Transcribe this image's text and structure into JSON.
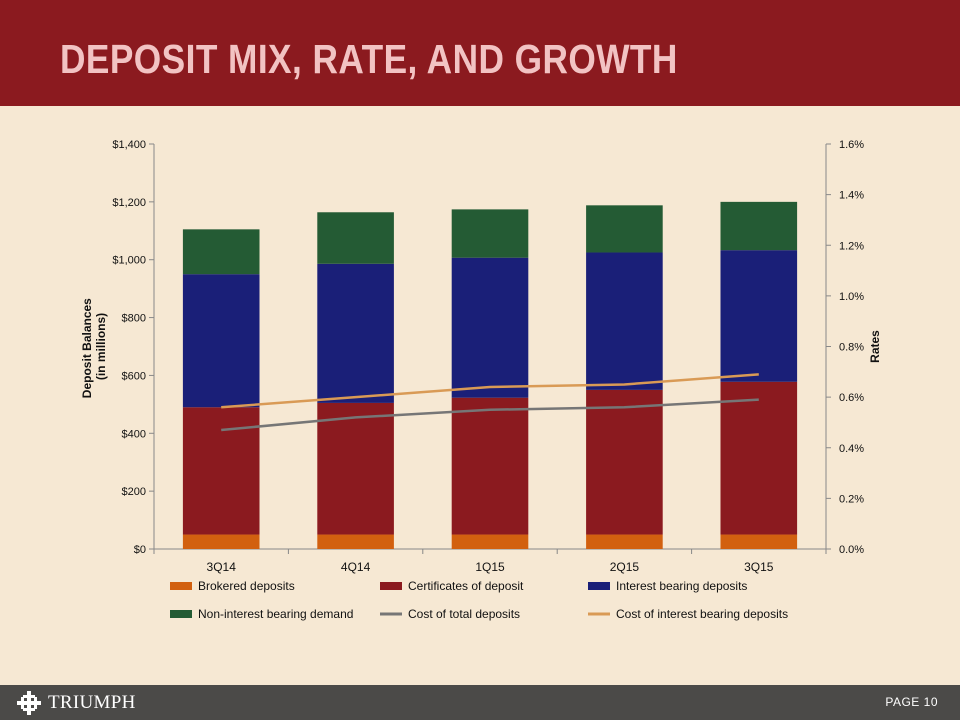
{
  "slide": {
    "title": "DEPOSIT MIX, RATE, AND GROWTH"
  },
  "footer": {
    "brand": "TRIUMPH",
    "page_label": "PAGE 10"
  },
  "colors": {
    "header": "#8b1a1f",
    "background": "#f6e8d3",
    "footer": "#4b4a48",
    "brokered": "#d2600f",
    "certificates": "#8b1a1f",
    "interest_bearing": "#1a1f78",
    "non_interest": "#245b34",
    "cost_total": "#767676",
    "cost_interest": "#d99a55"
  },
  "chart_data": {
    "type": "bar",
    "stacked": true,
    "categories": [
      "3Q14",
      "4Q14",
      "1Q15",
      "2Q15",
      "3Q15"
    ],
    "series": [
      {
        "name": "Brokered deposits",
        "type": "bar",
        "axis": "left",
        "color": "#d2600f",
        "values": [
          50,
          50,
          50,
          50,
          50
        ]
      },
      {
        "name": "Certificates of deposit",
        "type": "bar",
        "axis": "left",
        "color": "#8b1a1f",
        "values": [
          440,
          455,
          473,
          500,
          528
        ]
      },
      {
        "name": "Interest bearing deposits",
        "type": "bar",
        "axis": "left",
        "color": "#1a1f78",
        "values": [
          460,
          481,
          484,
          475,
          455
        ]
      },
      {
        "name": "Non-interest bearing demand",
        "type": "bar",
        "axis": "left",
        "color": "#245b34",
        "values": [
          155,
          178,
          167,
          163,
          167
        ]
      },
      {
        "name": "Cost of total deposits",
        "type": "line",
        "axis": "right",
        "color": "#767676",
        "values": [
          0.47,
          0.52,
          0.55,
          0.56,
          0.59
        ]
      },
      {
        "name": "Cost of interest bearing deposits",
        "type": "line",
        "axis": "right",
        "color": "#d99a55",
        "values": [
          0.56,
          0.6,
          0.64,
          0.65,
          0.69
        ]
      }
    ],
    "ylabel": [
      "Deposit Balances",
      "(in millions)"
    ],
    "y2label": "Rates",
    "xlabel": "",
    "ylim": [
      0,
      1400
    ],
    "y2lim": [
      0,
      1.6
    ],
    "y_ticks": [
      "$0",
      "$200",
      "$400",
      "$600",
      "$800",
      "$1,000",
      "$1,200",
      "$1,400"
    ],
    "y2_ticks": [
      "0.0%",
      "0.2%",
      "0.4%",
      "0.6%",
      "0.8%",
      "1.0%",
      "1.2%",
      "1.4%",
      "1.6%"
    ],
    "legend_position": "bottom",
    "grid": false
  }
}
